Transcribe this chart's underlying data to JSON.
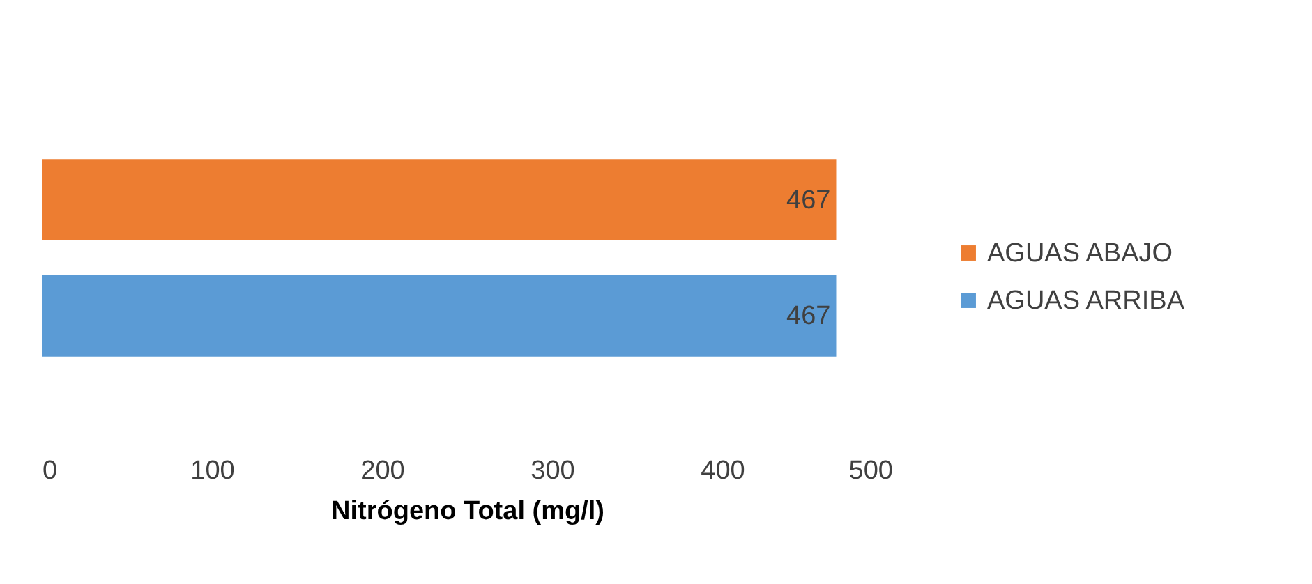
{
  "chart_data": {
    "type": "bar",
    "orientation": "horizontal",
    "xlabel": "Nitrógeno Total (mg/l)",
    "categories": [
      null
    ],
    "series": [
      {
        "name": "AGUAS ABAJO",
        "color": "#ed7d31",
        "values": [
          467
        ]
      },
      {
        "name": "AGUAS ARRIBA",
        "color": "#5b9bd5",
        "values": [
          467
        ]
      }
    ],
    "xlim": [
      0,
      500
    ],
    "xticks": [
      0,
      100,
      200,
      300,
      400,
      500
    ],
    "data_labels": true,
    "legend": "right",
    "grid": false
  }
}
